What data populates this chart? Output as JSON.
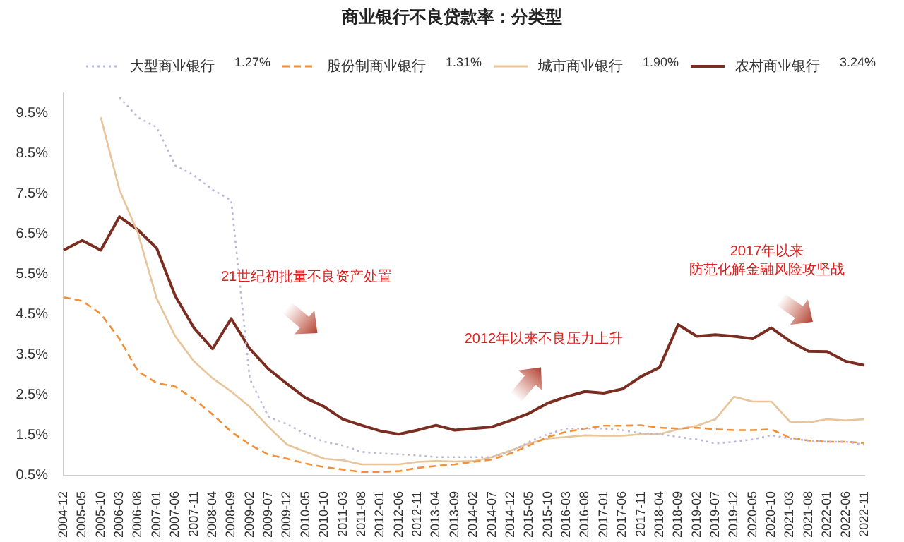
{
  "chart_data": {
    "type": "line",
    "title": "商业银行不良贷款率：分类型",
    "categories": [
      "2004-12",
      "2005-05",
      "2005-10",
      "2006-03",
      "2006-08",
      "2007-01",
      "2007-06",
      "2007-11",
      "2008-04",
      "2008-09",
      "2009-02",
      "2009-07",
      "2009-12",
      "2010-05",
      "2010-10",
      "2011-03",
      "2011-08",
      "2012-01",
      "2012-06",
      "2012-11",
      "2013-04",
      "2013-09",
      "2014-02",
      "2014-07",
      "2014-12",
      "2015-05",
      "2015-10",
      "2016-03",
      "2016-08",
      "2017-01",
      "2017-06",
      "2017-11",
      "2018-04",
      "2018-09",
      "2019-02",
      "2019-07",
      "2019-12",
      "2020-05",
      "2020-10",
      "2021-03",
      "2021-08",
      "2022-01",
      "2022-06",
      "2022-11"
    ],
    "series": [
      {
        "name": "大型商业银行",
        "color": "#b8b8d8",
        "line_style": "dotted",
        "values": [
          null,
          null,
          null,
          9.9,
          9.4,
          9.15,
          8.2,
          7.96,
          7.6,
          7.34,
          2.9,
          1.96,
          1.78,
          1.53,
          1.34,
          1.25,
          1.09,
          1.05,
          1.03,
          1.0,
          0.96,
          0.96,
          0.96,
          0.96,
          1.09,
          1.34,
          1.53,
          1.67,
          1.67,
          1.67,
          1.63,
          1.55,
          1.53,
          1.46,
          1.4,
          1.3,
          1.34,
          1.4,
          1.5,
          1.42,
          1.37,
          1.34,
          1.34,
          1.27
        ]
      },
      {
        "name": "股份制商业银行",
        "color": "#f0903a",
        "line_style": "dashed",
        "values": [
          4.93,
          4.84,
          4.52,
          3.9,
          3.09,
          2.8,
          2.71,
          2.4,
          2.02,
          1.59,
          1.27,
          1.02,
          0.92,
          0.8,
          0.71,
          0.65,
          0.59,
          0.59,
          0.61,
          0.69,
          0.74,
          0.78,
          0.84,
          0.9,
          1.05,
          1.25,
          1.46,
          1.59,
          1.67,
          1.74,
          1.74,
          1.75,
          1.69,
          1.67,
          1.69,
          1.65,
          1.63,
          1.63,
          1.65,
          1.44,
          1.37,
          1.34,
          1.34,
          1.31
        ]
      },
      {
        "name": "城市商业银行",
        "color": "#e8c49a",
        "line_style": "solid",
        "values": [
          null,
          null,
          9.4,
          7.6,
          6.52,
          4.9,
          3.96,
          3.34,
          2.92,
          2.59,
          2.21,
          1.71,
          1.27,
          1.09,
          0.92,
          0.88,
          0.78,
          0.78,
          0.78,
          0.84,
          0.86,
          0.85,
          0.86,
          0.96,
          1.12,
          1.3,
          1.42,
          1.46,
          1.5,
          1.49,
          1.49,
          1.53,
          1.53,
          1.65,
          1.74,
          1.9,
          2.46,
          2.34,
          2.34,
          1.84,
          1.82,
          1.9,
          1.87,
          1.9
        ]
      },
      {
        "name": "农村商业银行",
        "color": "#7a2e22",
        "line_style": "solid",
        "values": [
          6.1,
          6.34,
          6.1,
          6.93,
          6.6,
          6.15,
          4.96,
          4.17,
          3.65,
          4.4,
          3.65,
          3.15,
          2.78,
          2.43,
          2.21,
          1.9,
          1.75,
          1.61,
          1.53,
          1.63,
          1.75,
          1.63,
          1.67,
          1.71,
          1.87,
          2.05,
          2.3,
          2.46,
          2.59,
          2.55,
          2.65,
          2.96,
          3.19,
          4.25,
          3.96,
          4.0,
          3.96,
          3.9,
          4.17,
          3.84,
          3.59,
          3.58,
          3.34,
          3.24
        ]
      }
    ],
    "ylim": [
      0.5,
      10
    ],
    "yticks": [
      {
        "value": 0.5,
        "label": "0.5%"
      },
      {
        "value": 1.5,
        "label": "1.5%"
      },
      {
        "value": 2.5,
        "label": "2.5%"
      },
      {
        "value": 3.5,
        "label": "3.5%"
      },
      {
        "value": 4.5,
        "label": "4.5%"
      },
      {
        "value": 5.5,
        "label": "5.5%"
      },
      {
        "value": 6.5,
        "label": "6.5%"
      },
      {
        "value": 7.5,
        "label": "7.5%"
      },
      {
        "value": 8.5,
        "label": "8.5%"
      },
      {
        "value": 9.5,
        "label": "9.5%"
      }
    ],
    "grid": false,
    "legend": "top",
    "marker": "none",
    "annotations": [
      "1.27%",
      "1.31%",
      "1.90%",
      "3.24%",
      "21世纪初批量不良资产处置",
      "2012年以来不良压力上升",
      "2017年以来",
      "防范化解金融风险攻坚战"
    ]
  }
}
